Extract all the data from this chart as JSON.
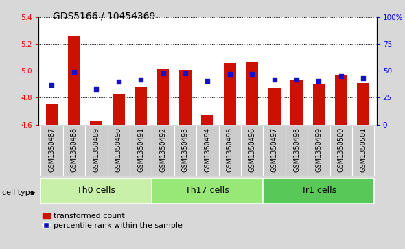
{
  "title": "GDS5166 / 10454369",
  "samples": [
    "GSM1350487",
    "GSM1350488",
    "GSM1350489",
    "GSM1350490",
    "GSM1350491",
    "GSM1350492",
    "GSM1350493",
    "GSM1350494",
    "GSM1350495",
    "GSM1350496",
    "GSM1350497",
    "GSM1350498",
    "GSM1350499",
    "GSM1350500",
    "GSM1350501"
  ],
  "transformed_count": [
    4.75,
    5.26,
    4.63,
    4.83,
    4.88,
    5.02,
    5.01,
    4.67,
    5.06,
    5.07,
    4.87,
    4.93,
    4.9,
    4.97,
    4.91
  ],
  "percentile_rank": [
    37,
    49,
    33,
    40,
    42,
    48,
    48,
    41,
    47,
    47,
    42,
    42,
    41,
    45,
    43
  ],
  "cell_groups": [
    {
      "label": "Th0 cells",
      "start": 0,
      "end": 5,
      "color": "#c8f0a8"
    },
    {
      "label": "Th17 cells",
      "start": 5,
      "end": 10,
      "color": "#98e878"
    },
    {
      "label": "Tr1 cells",
      "start": 10,
      "end": 15,
      "color": "#58c858"
    }
  ],
  "bar_color": "#cc1100",
  "dot_color": "#1111cc",
  "ymin": 4.6,
  "ymax": 5.4,
  "y_ticks_left": [
    4.6,
    4.8,
    5.0,
    5.2,
    5.4
  ],
  "y_ticks_right_vals": [
    0,
    25,
    50,
    75,
    100
  ],
  "y_ticks_right_labels": [
    "0",
    "25",
    "50",
    "75",
    "100%"
  ],
  "bg_color": "#d8d8d8",
  "plot_bg_color": "#ffffff",
  "sample_bg_color": "#cccccc",
  "title_fontsize": 10,
  "tick_fontsize": 7.5,
  "sample_fontsize": 7,
  "legend_fontsize": 8,
  "group_label_fontsize": 9,
  "cell_type_fontsize": 8
}
